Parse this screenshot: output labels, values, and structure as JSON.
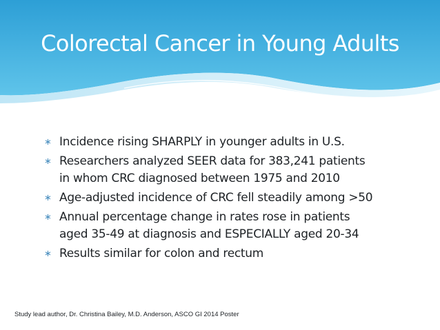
{
  "slide": {
    "title": "Colorectal Cancer in Young Adults",
    "bullet_glyph": "∗",
    "bullets": [
      {
        "lines": [
          "Incidence rising SHARPLY in younger adults in U.S."
        ]
      },
      {
        "lines": [
          "Researchers analyzed SEER data for 383,241 patients",
          "in whom CRC diagnosed between 1975 and 2010"
        ]
      },
      {
        "lines": [
          "Age-adjusted incidence of CRC fell steadily among >50"
        ]
      },
      {
        "lines": [
          "Annual percentage change in rates rose in patients",
          "aged 35-49 at diagnosis and ESPECIALLY aged 20-34"
        ]
      },
      {
        "lines": [
          "Results similar for colon and rectum"
        ]
      }
    ],
    "footnote": "Study lead author, Dr. Christina Bailey, M.D. Anderson, ASCO GI 2014 Poster"
  },
  "colors": {
    "header_blue_light": "#5fc4ea",
    "header_blue_dark": "#2d9fd6",
    "bullet_accent": "#4a8fbf",
    "body_text": "#1e2226"
  }
}
